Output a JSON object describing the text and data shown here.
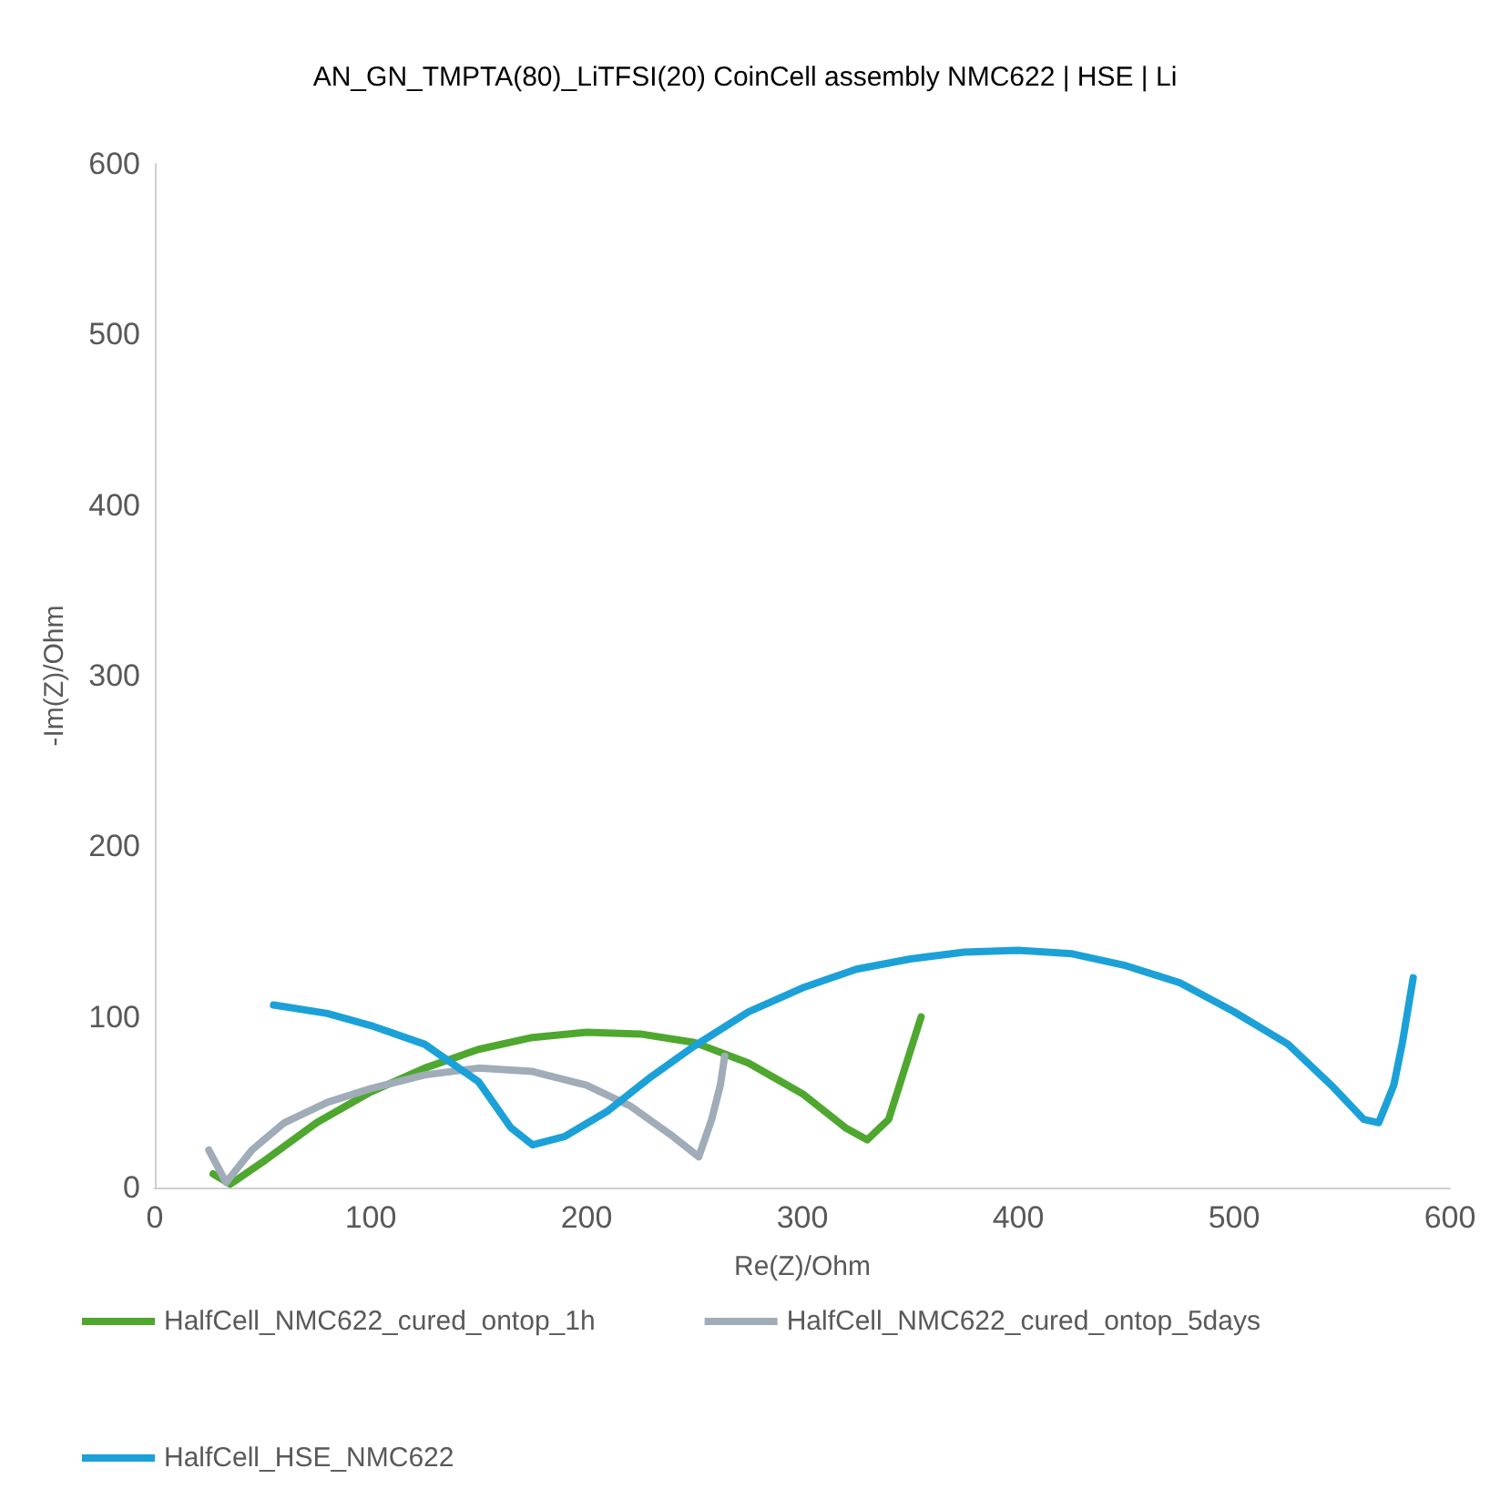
{
  "chart_data": {
    "type": "line",
    "title": "AN_GN_TMPTA(80)_LiTFSI(20) CoinCell assembly NMC622 | HSE | Li",
    "xlabel": "Re(Z)/Ohm",
    "ylabel": "-Im(Z)/Ohm",
    "xlim": [
      0,
      600
    ],
    "xticks": [
      0,
      100,
      200,
      300,
      400,
      500,
      600
    ],
    "ylim": [
      0,
      600
    ],
    "yticks": [
      0,
      100,
      200,
      300,
      400,
      500,
      600
    ],
    "grid": false,
    "legend": "bottom",
    "marker": "none",
    "line_style": "solid",
    "series": [
      {
        "name": "HalfCell_NMC622_cured_ontop_1h",
        "color": "#4ea72e",
        "x": [
          27,
          35,
          50,
          75,
          100,
          125,
          150,
          175,
          200,
          225,
          250,
          275,
          300,
          320,
          330,
          340,
          355
        ],
        "values": [
          8,
          2,
          15,
          38,
          56,
          70,
          81,
          88,
          91,
          90,
          85,
          73,
          55,
          35,
          28,
          40,
          100
        ]
      },
      {
        "name": "HalfCell_NMC622_cured_ontop_5days",
        "color": "#a0acb8",
        "x": [
          25,
          33,
          45,
          60,
          80,
          100,
          125,
          150,
          175,
          200,
          220,
          240,
          252,
          258,
          262,
          264
        ],
        "values": [
          22,
          3,
          22,
          38,
          50,
          58,
          66,
          70,
          68,
          60,
          48,
          30,
          18,
          40,
          60,
          77
        ]
      },
      {
        "name": "HalfCell_HSE_NMC622",
        "color": "#1ba1d8",
        "x": [
          55,
          80,
          100,
          125,
          150,
          165,
          175,
          190,
          210,
          230,
          250,
          275,
          300,
          325,
          350,
          375,
          400,
          425,
          450,
          475,
          500,
          525,
          545,
          560,
          567,
          574,
          578,
          583
        ],
        "values": [
          107,
          102,
          95,
          84,
          62,
          35,
          25,
          30,
          45,
          65,
          83,
          103,
          117,
          128,
          134,
          138,
          139,
          137,
          130,
          120,
          103,
          84,
          60,
          40,
          38,
          60,
          85,
          123
        ]
      }
    ]
  }
}
